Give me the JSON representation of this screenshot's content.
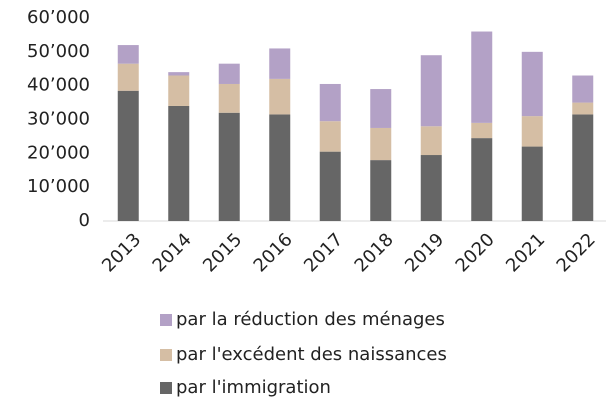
{
  "chart_data": {
    "type": "stacked_bar",
    "categories": [
      "2013",
      "2014",
      "2015",
      "2016",
      "2017",
      "2018",
      "2019",
      "2020",
      "2021",
      "2022"
    ],
    "series": [
      {
        "name": "par l'immigration",
        "color": "#666666",
        "values": [
          38500,
          34000,
          32000,
          31500,
          20500,
          18000,
          19500,
          24500,
          22000,
          31500
        ]
      },
      {
        "name": "par l'excédent des naissances",
        "color": "#d5bea4",
        "values": [
          8000,
          9000,
          8500,
          10500,
          9000,
          9500,
          8500,
          4500,
          9000,
          3500
        ]
      },
      {
        "name": "par la réduction des ménages",
        "color": "#b3a1c6",
        "values": [
          5500,
          1000,
          6000,
          9000,
          11000,
          11500,
          21000,
          27000,
          19000,
          8000
        ]
      }
    ],
    "ylim": [
      0,
      60000
    ],
    "yticks": [
      0,
      {
        "value": 10000,
        "label": "10’000"
      },
      {
        "value": 20000,
        "label": "20’000"
      },
      {
        "value": 30000,
        "label": "30’000"
      },
      {
        "value": 40000,
        "label": "40’000"
      },
      {
        "value": 50000,
        "label": "50’000"
      },
      {
        "value": 60000,
        "label": "60’000"
      }
    ],
    "grid": false
  }
}
